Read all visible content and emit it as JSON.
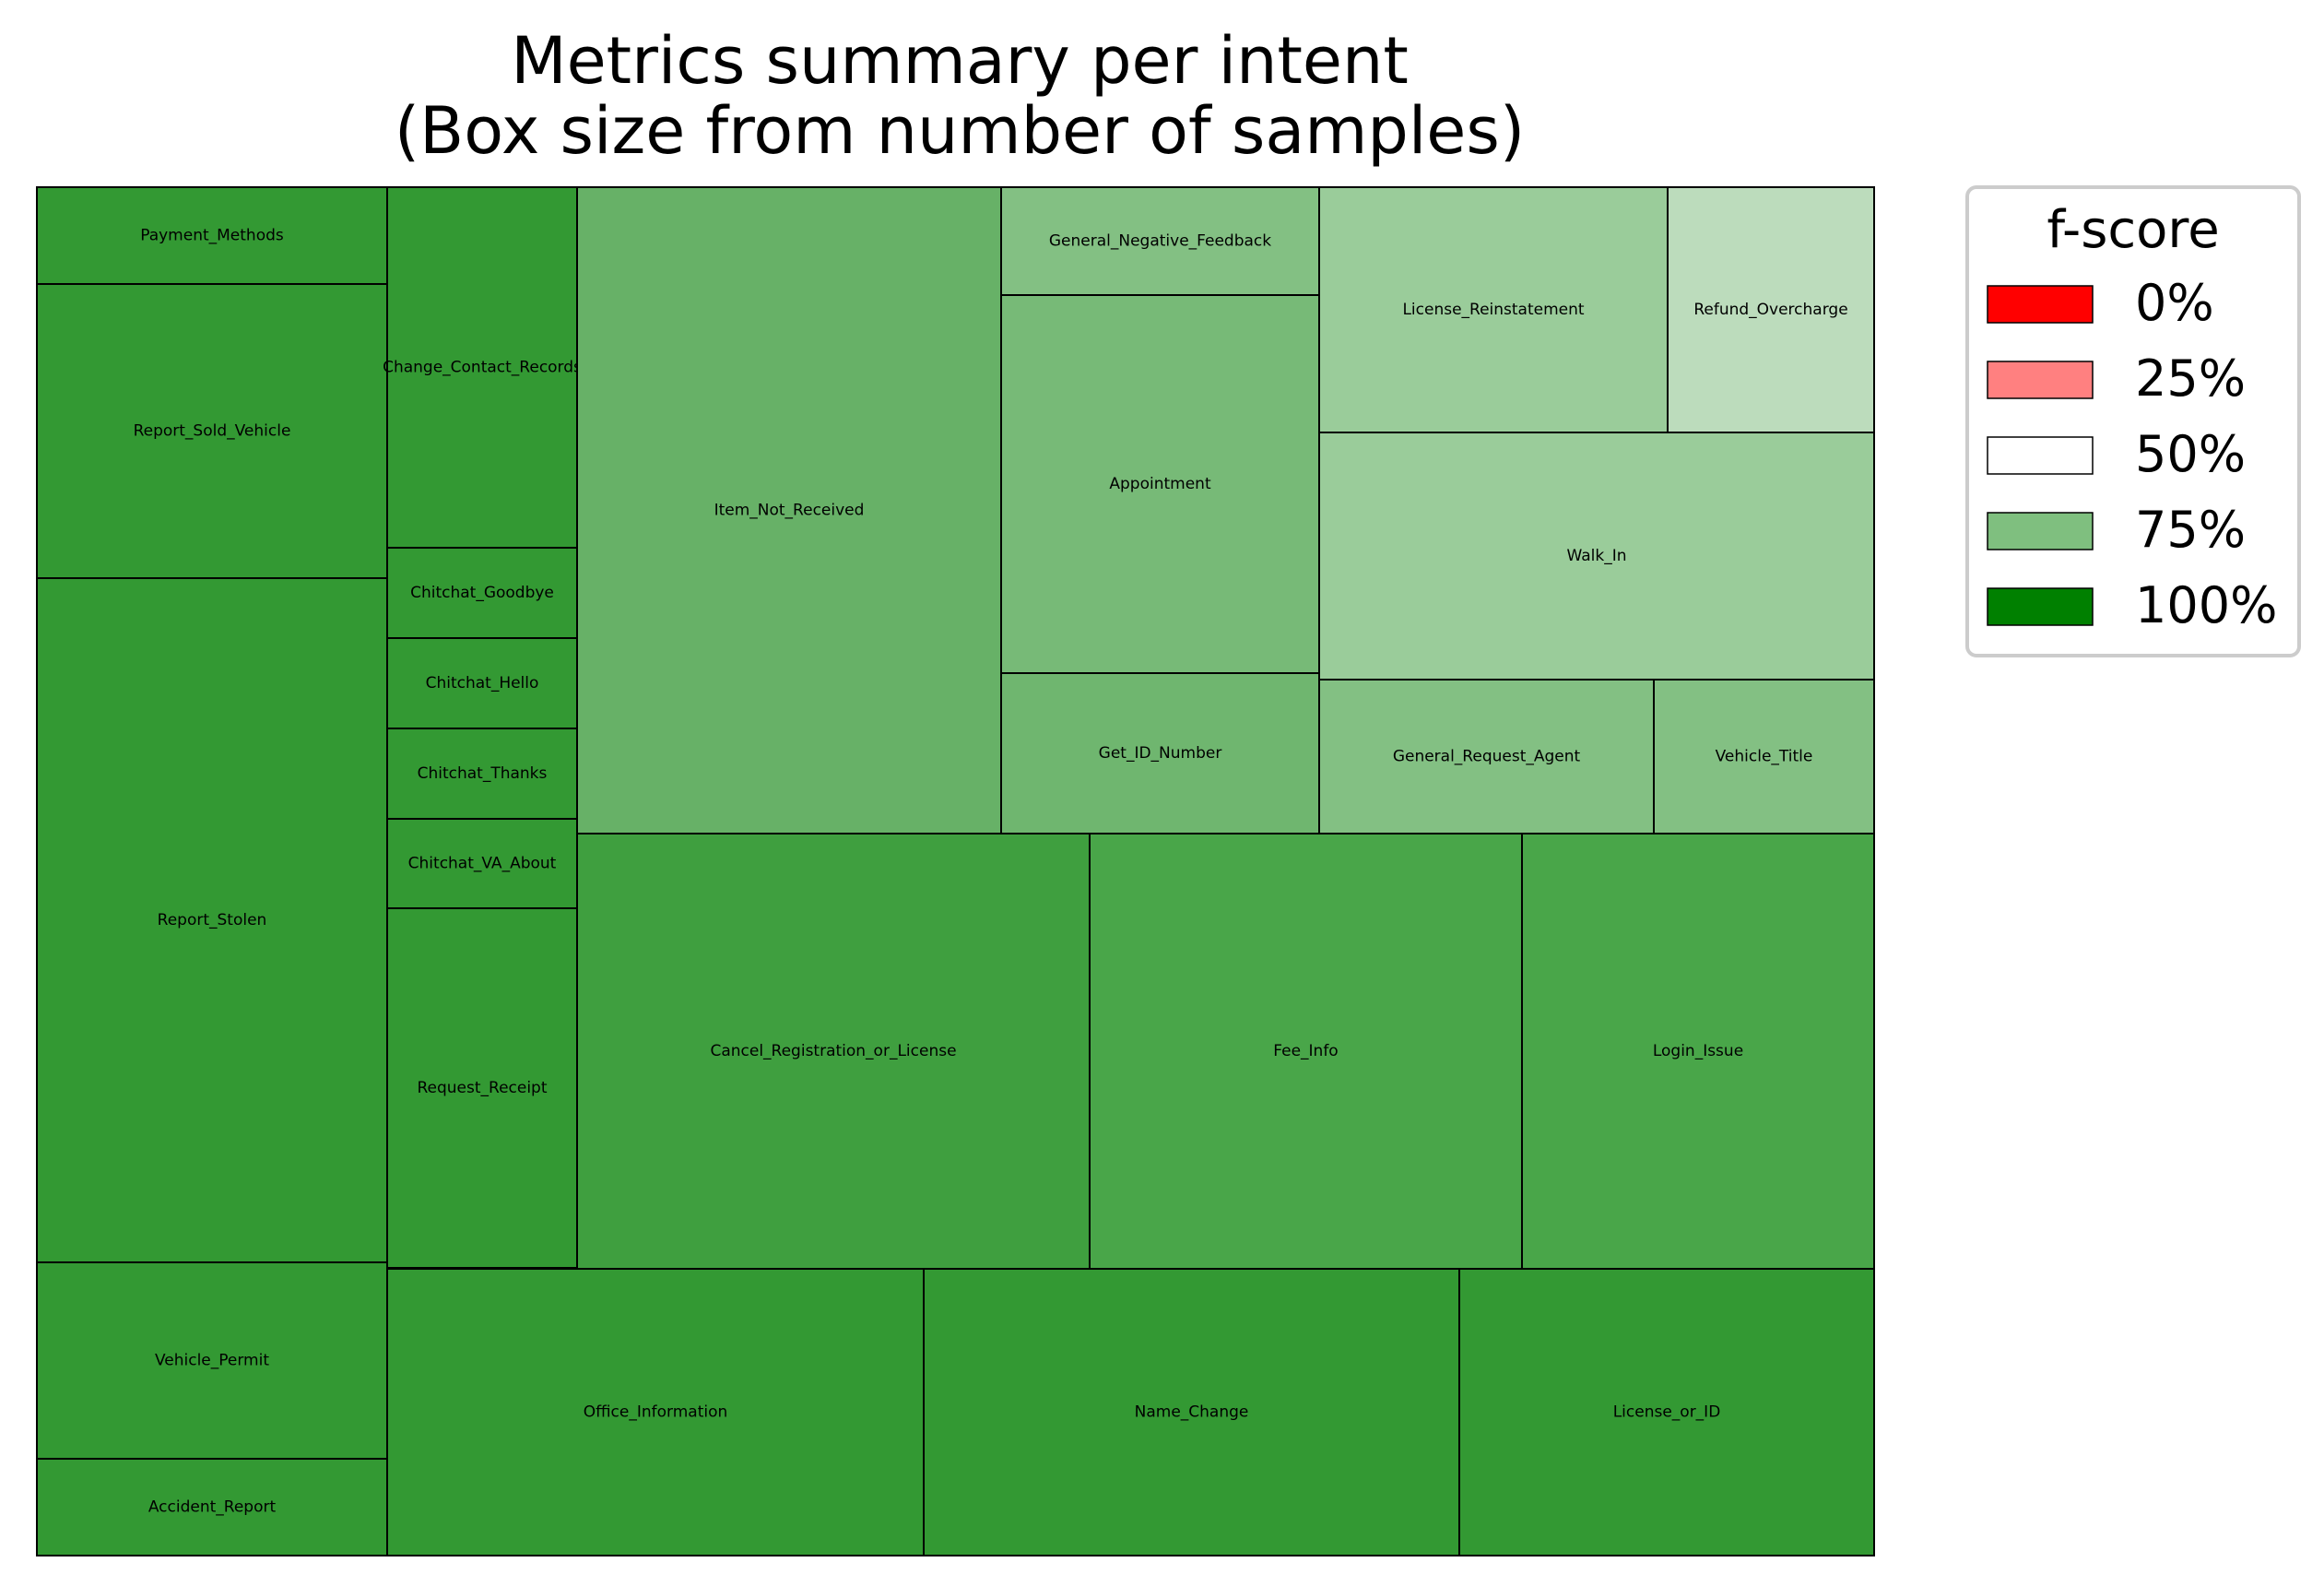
{
  "chart_data": {
    "type": "treemap",
    "title_line1": "Metrics summary per intent",
    "title_line2": "(Box size from number of samples)",
    "colors": {
      "very_high": "#339933",
      "high": "#3f9f3f",
      "mid_high": "#49a649",
      "medium": "#67b167",
      "medium_light": "#6fb66f",
      "light": "#77ba77",
      "lighter": "#83c083",
      "lightest": "#9acc9a",
      "palest": "#bcdcbc",
      "border": "#000000"
    },
    "cells": [
      {
        "name": "Payment_Methods",
        "tone": "very_high"
      },
      {
        "name": "Report_Sold_Vehicle",
        "tone": "very_high"
      },
      {
        "name": "Report_Stolen",
        "tone": "very_high"
      },
      {
        "name": "Vehicle_Permit",
        "tone": "very_high"
      },
      {
        "name": "Accident_Report",
        "tone": "very_high"
      },
      {
        "name": "Change_Contact_Records",
        "tone": "very_high"
      },
      {
        "name": "Chitchat_Goodbye",
        "tone": "very_high"
      },
      {
        "name": "Chitchat_Hello",
        "tone": "very_high"
      },
      {
        "name": "Chitchat_Thanks",
        "tone": "very_high"
      },
      {
        "name": "Chitchat_VA_About",
        "tone": "very_high"
      },
      {
        "name": "Request_Receipt",
        "tone": "very_high"
      },
      {
        "name": "Item_Not_Received",
        "tone": "medium"
      },
      {
        "name": "General_Negative_Feedback",
        "tone": "lighter"
      },
      {
        "name": "Appointment",
        "tone": "light"
      },
      {
        "name": "Get_ID_Number",
        "tone": "medium_light"
      },
      {
        "name": "License_Reinstatement",
        "tone": "lightest"
      },
      {
        "name": "Refund_Overcharge",
        "tone": "palest"
      },
      {
        "name": "Walk_In",
        "tone": "lightest"
      },
      {
        "name": "General_Request_Agent",
        "tone": "lighter"
      },
      {
        "name": "Vehicle_Title",
        "tone": "lighter"
      },
      {
        "name": "Cancel_Registration_or_License",
        "tone": "high"
      },
      {
        "name": "Fee_Info",
        "tone": "mid_high"
      },
      {
        "name": "Login_Issue",
        "tone": "mid_high"
      },
      {
        "name": "Office_Information",
        "tone": "very_high"
      },
      {
        "name": "Name_Change",
        "tone": "very_high"
      },
      {
        "name": "License_or_ID",
        "tone": "very_high"
      }
    ],
    "legend": {
      "title": "f-score",
      "placement": "outside-right",
      "entries": [
        {
          "label": "0%",
          "color": "#ff0000"
        },
        {
          "label": "25%",
          "color": "#ff8080"
        },
        {
          "label": "50%",
          "color": "#ffffff"
        },
        {
          "label": "75%",
          "color": "#7fbf7f"
        },
        {
          "label": "100%",
          "color": "#008000"
        }
      ]
    }
  }
}
